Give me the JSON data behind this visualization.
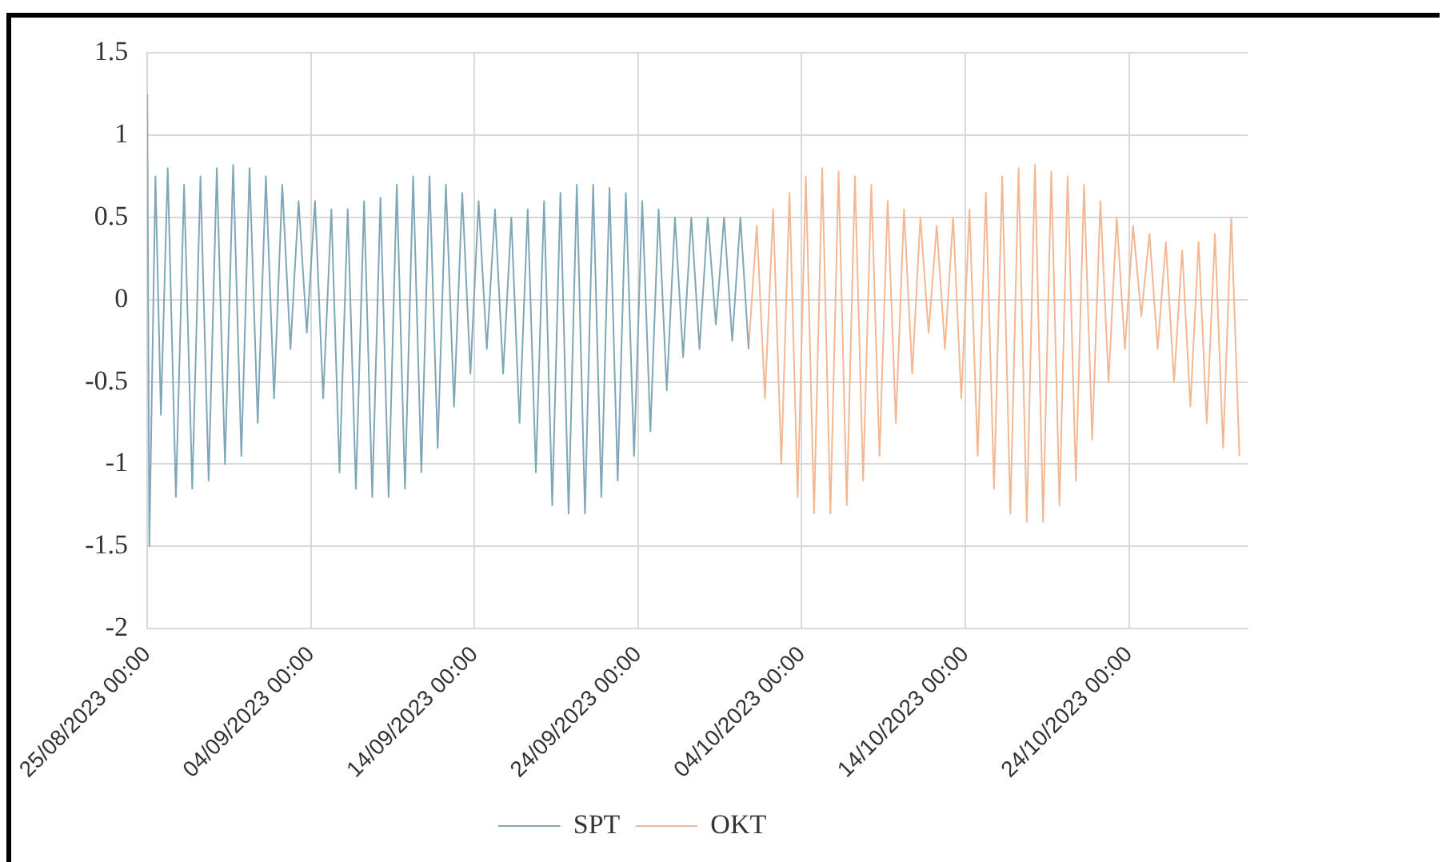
{
  "chart_data": {
    "type": "line",
    "xlim": [
      "2023-08-25",
      "2023-10-31T06:00"
    ],
    "ylim": [
      -2,
      1.5
    ],
    "xticks": [
      {
        "value": "2023-08-25",
        "label": "25/08/2023 00:00"
      },
      {
        "value": "2023-09-04",
        "label": "04/09/2023 00:00"
      },
      {
        "value": "2023-09-14",
        "label": "14/09/2023 00:00"
      },
      {
        "value": "2023-09-24",
        "label": "24/09/2023 00:00"
      },
      {
        "value": "2023-10-04",
        "label": "04/10/2023 00:00"
      },
      {
        "value": "2023-10-14",
        "label": "14/10/2023 00:00"
      },
      {
        "value": "2023-10-24",
        "label": "24/10/2023 00:00"
      }
    ],
    "yticks": [
      -2,
      -1.5,
      -1,
      -0.5,
      0,
      0.5,
      1,
      1.5
    ],
    "grid": true,
    "legend": "bottom",
    "marker": "none",
    "line_style": "solid",
    "series": [
      {
        "name": "SPT",
        "color": "#7fa7b8",
        "x": [
          "2023-08-25T00:00",
          "2023-08-25T03:00",
          "2023-08-25T12:00",
          "2023-08-25T20:00",
          "2023-08-26T06:00",
          "2023-08-26T18:00",
          "2023-08-27T06:00",
          "2023-08-27T18:00",
          "2023-08-28T06:00",
          "2023-08-28T18:00",
          "2023-08-29T06:00",
          "2023-08-29T18:00",
          "2023-08-30T06:00",
          "2023-08-30T18:00",
          "2023-08-31T06:00",
          "2023-08-31T18:00",
          "2023-09-01T06:00",
          "2023-09-01T18:00",
          "2023-09-02T06:00",
          "2023-09-02T18:00",
          "2023-09-03T06:00",
          "2023-09-03T18:00",
          "2023-09-04T06:00",
          "2023-09-04T18:00",
          "2023-09-05T06:00",
          "2023-09-05T18:00",
          "2023-09-06T06:00",
          "2023-09-06T18:00",
          "2023-09-07T06:00",
          "2023-09-07T18:00",
          "2023-09-08T06:00",
          "2023-09-08T18:00",
          "2023-09-09T06:00",
          "2023-09-09T18:00",
          "2023-09-10T06:00",
          "2023-09-10T18:00",
          "2023-09-11T06:00",
          "2023-09-11T18:00",
          "2023-09-12T06:00",
          "2023-09-12T18:00",
          "2023-09-13T06:00",
          "2023-09-13T18:00",
          "2023-09-14T06:00",
          "2023-09-14T18:00",
          "2023-09-15T06:00",
          "2023-09-15T18:00",
          "2023-09-16T06:00",
          "2023-09-16T18:00",
          "2023-09-17T06:00",
          "2023-09-17T18:00",
          "2023-09-18T06:00",
          "2023-09-18T18:00",
          "2023-09-19T06:00",
          "2023-09-19T18:00",
          "2023-09-20T06:00",
          "2023-09-20T18:00",
          "2023-09-21T06:00",
          "2023-09-21T18:00",
          "2023-09-22T06:00",
          "2023-09-22T18:00",
          "2023-09-23T06:00",
          "2023-09-23T18:00",
          "2023-09-24T06:00",
          "2023-09-24T18:00",
          "2023-09-25T06:00",
          "2023-09-25T18:00",
          "2023-09-26T06:00",
          "2023-09-26T18:00",
          "2023-09-27T06:00",
          "2023-09-27T18:00",
          "2023-09-28T06:00",
          "2023-09-28T18:00",
          "2023-09-29T06:00",
          "2023-09-29T18:00",
          "2023-09-30T06:00",
          "2023-09-30T18:00"
        ],
        "values": [
          1.25,
          -1.5,
          0.75,
          -0.7,
          0.8,
          -1.2,
          0.7,
          -1.15,
          0.75,
          -1.1,
          0.8,
          -1.0,
          0.82,
          -0.95,
          0.8,
          -0.75,
          0.75,
          -0.6,
          0.7,
          -0.3,
          0.6,
          -0.2,
          0.6,
          -0.6,
          0.55,
          -1.05,
          0.55,
          -1.15,
          0.6,
          -1.2,
          0.62,
          -1.2,
          0.7,
          -1.15,
          0.75,
          -1.05,
          0.75,
          -0.9,
          0.7,
          -0.65,
          0.65,
          -0.45,
          0.6,
          -0.3,
          0.55,
          -0.45,
          0.5,
          -0.75,
          0.55,
          -1.05,
          0.6,
          -1.25,
          0.65,
          -1.3,
          0.7,
          -1.3,
          0.7,
          -1.2,
          0.68,
          -1.1,
          0.65,
          -0.95,
          0.6,
          -0.8,
          0.55,
          -0.55,
          0.5,
          -0.35,
          0.5,
          -0.3,
          0.5,
          -0.15,
          0.5,
          -0.25,
          0.5,
          -0.3
        ]
      },
      {
        "name": "OKT",
        "color": "#f2b894",
        "x": [
          "2023-09-30T18:00",
          "2023-10-01T06:00",
          "2023-10-01T18:00",
          "2023-10-02T06:00",
          "2023-10-02T18:00",
          "2023-10-03T06:00",
          "2023-10-03T18:00",
          "2023-10-04T06:00",
          "2023-10-04T18:00",
          "2023-10-05T06:00",
          "2023-10-05T18:00",
          "2023-10-06T06:00",
          "2023-10-06T18:00",
          "2023-10-07T06:00",
          "2023-10-07T18:00",
          "2023-10-08T06:00",
          "2023-10-08T18:00",
          "2023-10-09T06:00",
          "2023-10-09T18:00",
          "2023-10-10T06:00",
          "2023-10-10T18:00",
          "2023-10-11T06:00",
          "2023-10-11T18:00",
          "2023-10-12T06:00",
          "2023-10-12T18:00",
          "2023-10-13T06:00",
          "2023-10-13T18:00",
          "2023-10-14T06:00",
          "2023-10-14T18:00",
          "2023-10-15T06:00",
          "2023-10-15T18:00",
          "2023-10-16T06:00",
          "2023-10-16T18:00",
          "2023-10-17T06:00",
          "2023-10-17T18:00",
          "2023-10-18T06:00",
          "2023-10-18T18:00",
          "2023-10-19T06:00",
          "2023-10-19T18:00",
          "2023-10-20T06:00",
          "2023-10-20T18:00",
          "2023-10-21T06:00",
          "2023-10-21T18:00",
          "2023-10-22T06:00",
          "2023-10-22T18:00",
          "2023-10-23T06:00",
          "2023-10-23T18:00",
          "2023-10-24T06:00",
          "2023-10-24T18:00",
          "2023-10-25T06:00",
          "2023-10-25T18:00",
          "2023-10-26T06:00",
          "2023-10-26T18:00",
          "2023-10-27T06:00",
          "2023-10-27T18:00",
          "2023-10-28T06:00",
          "2023-10-28T18:00",
          "2023-10-29T06:00",
          "2023-10-29T18:00",
          "2023-10-30T06:00",
          "2023-10-30T18:00"
        ],
        "values": [
          -0.3,
          0.45,
          -0.6,
          0.55,
          -1.0,
          0.65,
          -1.2,
          0.75,
          -1.3,
          0.8,
          -1.3,
          0.78,
          -1.25,
          0.75,
          -1.1,
          0.7,
          -0.95,
          0.6,
          -0.75,
          0.55,
          -0.45,
          0.5,
          -0.2,
          0.45,
          -0.3,
          0.5,
          -0.6,
          0.55,
          -0.95,
          0.65,
          -1.15,
          0.75,
          -1.3,
          0.8,
          -1.35,
          0.82,
          -1.35,
          0.78,
          -1.25,
          0.75,
          -1.1,
          0.7,
          -0.85,
          0.6,
          -0.5,
          0.5,
          -0.3,
          0.45,
          -0.1,
          0.4,
          -0.3,
          0.35,
          -0.5,
          0.3,
          -0.65,
          0.35,
          -0.75,
          0.4,
          -0.9,
          0.5,
          -0.95
        ]
      }
    ]
  }
}
